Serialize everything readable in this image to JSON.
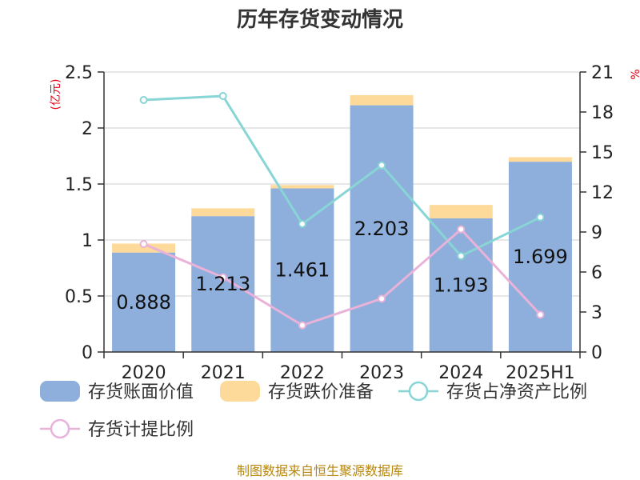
{
  "chart_data": {
    "type": "bar",
    "title": "历年存货变动情况",
    "categories": [
      "2020",
      "2021",
      "2022",
      "2023",
      "2024",
      "2025H1"
    ],
    "left_axis": {
      "unit_label": "(亿元)",
      "ylim": [
        0,
        2.5
      ],
      "ticks": [
        "0",
        "0.5",
        "1",
        "1.5",
        "2",
        "2.5"
      ]
    },
    "right_axis": {
      "unit_label": "%",
      "ylim": [
        0,
        21
      ],
      "ticks": [
        "0",
        "3",
        "6",
        "9",
        "12",
        "15",
        "18",
        "21"
      ]
    },
    "series": [
      {
        "name": "存货账面价值",
        "kind": "stacked-bar",
        "axis": "left",
        "color": "#8eaedb",
        "values": [
          0.888,
          1.213,
          1.461,
          2.203,
          1.193,
          1.699
        ],
        "labels": [
          "0.888",
          "1.213",
          "1.461",
          "2.203",
          "1.193",
          "1.699"
        ]
      },
      {
        "name": "存货跌价准备",
        "kind": "stacked-bar",
        "axis": "left",
        "color": "#fdd99a",
        "values": [
          0.08,
          0.07,
          0.03,
          0.09,
          0.12,
          0.04
        ]
      },
      {
        "name": "存货占净资产比例",
        "kind": "line",
        "axis": "right",
        "color": "#88d5d5",
        "values": [
          18.9,
          19.2,
          9.6,
          14.0,
          7.2,
          10.1
        ]
      },
      {
        "name": "存货计提比例",
        "kind": "line",
        "axis": "right",
        "color": "#e9b2d8",
        "values": [
          8.1,
          5.6,
          2.0,
          4.0,
          9.2,
          2.8
        ]
      }
    ],
    "grid": true,
    "legend_position": "bottom"
  },
  "source": "制图数据来自恒生聚源数据库"
}
